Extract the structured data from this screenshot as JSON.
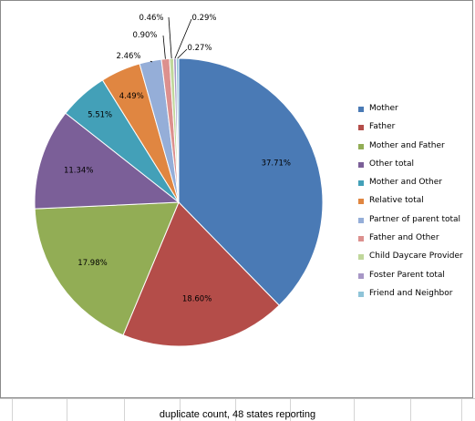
{
  "chart_data": {
    "type": "pie",
    "categories": [
      "Mother",
      "Father",
      "Mother and Father",
      "Other total",
      "Mother and Other",
      "Relative total",
      "Partner of parent total",
      "Father and Other",
      "Child Daycare Provider",
      "Foster Parent total",
      "Friend and Neighbor"
    ],
    "values": [
      37.71,
      18.6,
      17.98,
      11.34,
      5.51,
      4.49,
      2.46,
      0.9,
      0.46,
      0.29,
      0.27
    ],
    "value_labels": [
      "37.71%",
      "18.60%",
      "17.98%",
      "11.34%",
      "5.51%",
      "4.49%",
      "2.46%",
      "0.90%",
      "0.46%",
      "0.29%",
      "0.27%"
    ],
    "colors": [
      "#4a7ab5",
      "#b44d49",
      "#92ad55",
      "#7b5f98",
      "#43a0b8",
      "#e08641",
      "#95aed8",
      "#dc908e",
      "#c0d79b",
      "#a797c6",
      "#8fc4d8"
    ],
    "legend_position": "right",
    "start_angle": "top, clockwise"
  },
  "footnote": "duplicate count, 48 states reporting"
}
